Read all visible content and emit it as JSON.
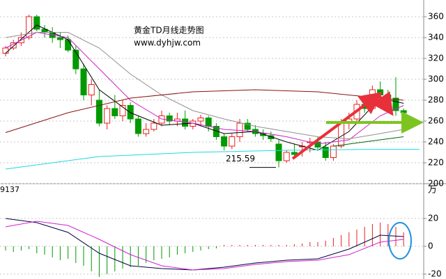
{
  "chart_data": [
    {
      "type": "candlestick",
      "title": "黄金TD月线走势图",
      "subtitle": "www.dyhjw.com",
      "open": [
        325,
        330,
        335,
        340,
        360,
        348,
        345,
        340,
        338,
        328,
        310,
        285,
        280,
        258,
        272,
        265,
        275,
        262,
        248,
        252,
        258,
        265,
        260,
        262,
        255,
        260,
        263,
        255,
        245,
        236,
        245,
        258,
        252,
        248,
        246,
        238,
        222,
        230,
        236,
        240,
        240,
        235,
        225,
        236,
        258,
        262,
        276,
        272,
        290,
        285,
        282,
        270
      ],
      "high": [
        332,
        338,
        345,
        362,
        362,
        352,
        350,
        345,
        342,
        332,
        315,
        300,
        290,
        275,
        285,
        280,
        278,
        265,
        258,
        262,
        270,
        268,
        268,
        270,
        262,
        266,
        265,
        258,
        248,
        248,
        262,
        262,
        256,
        252,
        250,
        242,
        232,
        238,
        240,
        244,
        245,
        240,
        238,
        262,
        268,
        280,
        285,
        294,
        298,
        290,
        302,
        272
      ],
      "low": [
        322,
        328,
        332,
        338,
        346,
        340,
        335,
        330,
        326,
        305,
        280,
        275,
        255,
        252,
        262,
        260,
        258,
        245,
        245,
        250,
        255,
        256,
        255,
        252,
        252,
        255,
        250,
        242,
        232,
        233,
        240,
        250,
        245,
        242,
        240,
        215.59,
        220,
        225,
        226,
        230,
        232,
        222,
        222,
        234,
        252,
        258,
        268,
        270,
        282,
        278,
        265,
        266
      ],
      "close": [
        330,
        335,
        340,
        360,
        348,
        345,
        340,
        338,
        328,
        310,
        285,
        295,
        258,
        272,
        265,
        275,
        262,
        248,
        252,
        258,
        265,
        260,
        262,
        255,
        260,
        263,
        255,
        245,
        236,
        245,
        258,
        252,
        248,
        246,
        243,
        222,
        230,
        228,
        236,
        240,
        235,
        225,
        236,
        258,
        262,
        276,
        272,
        290,
        285,
        282,
        270,
        268
      ],
      "up_color": "#e8201e",
      "down_color": "#009a00",
      "lines": [
        {
          "color": "#000000",
          "x": [
            0,
            4,
            8,
            12,
            16,
            20,
            24,
            28,
            32,
            36,
            40,
            44,
            48,
            51
          ],
          "values": [
            325,
            352,
            338,
            290,
            268,
            256,
            258,
            248,
            250,
            240,
            232,
            250,
            282,
            277
          ]
        },
        {
          "color": "#d020d0",
          "x": [
            0,
            4,
            8,
            12,
            16,
            20,
            24,
            28,
            32,
            36,
            40,
            44,
            48,
            51
          ],
          "values": [
            330,
            345,
            340,
            310,
            280,
            262,
            258,
            252,
            250,
            245,
            238,
            242,
            265,
            275
          ]
        },
        {
          "color": "#909090",
          "x": [
            0,
            4,
            8,
            12,
            16,
            20,
            24,
            28,
            32,
            36,
            40,
            44,
            48,
            51
          ],
          "values": [
            340,
            345,
            345,
            330,
            305,
            285,
            270,
            262,
            255,
            250,
            245,
            243,
            248,
            252
          ]
        },
        {
          "color": "#8b1010",
          "x": [
            0,
            8,
            16,
            24,
            32,
            40,
            48,
            51
          ],
          "values": [
            249,
            268,
            282,
            288,
            290,
            288,
            282,
            280
          ]
        },
        {
          "color": "#20d8e0",
          "x": [
            0,
            12,
            24,
            36,
            48,
            53
          ],
          "values": [
            214,
            226,
            230,
            232,
            233,
            233
          ]
        },
        {
          "color": "#006400",
          "x": [
            42,
            51
          ],
          "values": [
            236,
            245
          ]
        }
      ],
      "ylim": [
        200,
        376
      ],
      "yticks": [
        360,
        340,
        320,
        300,
        280,
        260,
        240,
        220,
        200
      ],
      "grid": true
    },
    {
      "type": "macd",
      "label": "9137",
      "unit": "万",
      "values": [
        -3,
        -4,
        -3,
        -2,
        -5,
        -6,
        -8,
        -10,
        -9,
        -12,
        -14,
        -18,
        -22,
        -20,
        -18,
        -16,
        -15,
        -14,
        -12,
        -10,
        -9,
        -8,
        -6,
        -5,
        -4,
        -3,
        -2,
        -1.5,
        1,
        1,
        1,
        1,
        1,
        1,
        1,
        1,
        1,
        1.5,
        2,
        3,
        3,
        4,
        6,
        8,
        10,
        12,
        14,
        16,
        17,
        16,
        14,
        10
      ],
      "up_color": "#e8201e",
      "down_color": "#009a00",
      "lines": [
        {
          "color": "#000040",
          "x": [
            0,
            4,
            8,
            12,
            16,
            20,
            24,
            28,
            32,
            36,
            40,
            44,
            48,
            51
          ],
          "values": [
            20,
            17,
            10,
            -5,
            -14,
            -16,
            -17,
            -15,
            -12,
            -10,
            -9,
            -2,
            8,
            7
          ]
        },
        {
          "color": "#d020d0",
          "x": [
            0,
            4,
            8,
            12,
            16,
            20,
            24,
            28,
            32,
            36,
            40,
            44,
            48,
            51
          ],
          "values": [
            14,
            18,
            15,
            5,
            -6,
            -14,
            -17,
            -16,
            -13,
            -11,
            -10,
            -6,
            3,
            5
          ]
        }
      ],
      "ylim": [
        -23.5,
        44
      ],
      "yticks": [
        20,
        0,
        -20
      ],
      "grid": true
    }
  ]
}
